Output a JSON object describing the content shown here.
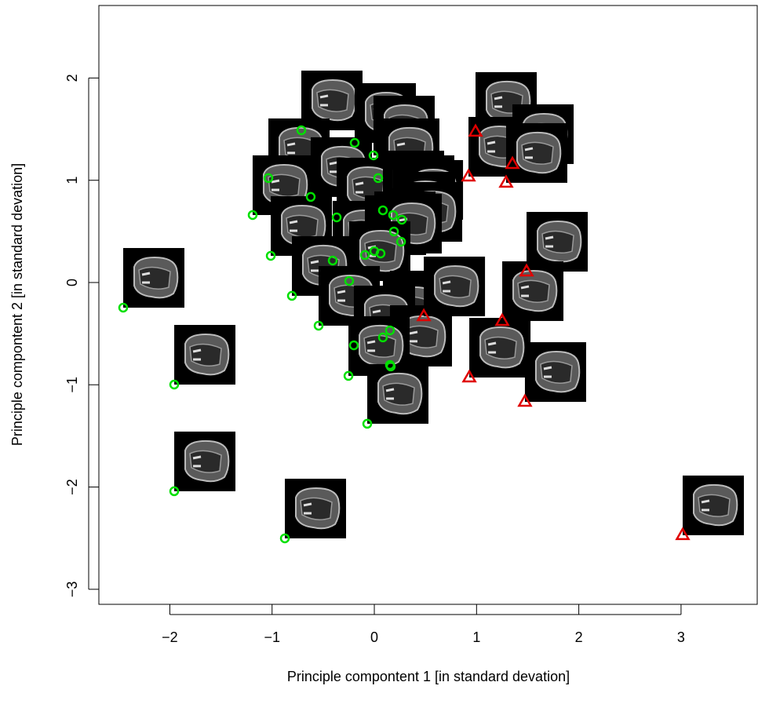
{
  "chart_data": {
    "type": "scatter",
    "x_label": "Principle compontent 1 [in standard devation]",
    "y_label": "Principle compontent 2 [in standard devation]",
    "xlim": [
      -2.694,
      3.745
    ],
    "ylim": [
      -3.147,
      2.709
    ],
    "xticks": [
      {
        "value": -2,
        "label": "−2"
      },
      {
        "value": -1,
        "label": "−1"
      },
      0,
      1,
      2,
      3
    ],
    "yticks": [
      {
        "value": -3,
        "label": "−3"
      },
      {
        "value": -2,
        "label": "−2"
      },
      {
        "value": -1,
        "label": "−1"
      },
      0,
      1,
      2
    ],
    "thumbnails": true,
    "series": [
      {
        "color": "#00e000",
        "marker": "circle",
        "x": [
          -2.456,
          -0.714,
          -0.192,
          -0.008,
          -1.036,
          -0.622,
          0.038,
          -1.19,
          -0.368,
          0.084,
          0.184,
          0.269,
          0.192,
          0.261,
          -1.013,
          -0.407,
          -0.092,
          0,
          0.061,
          -0.246,
          -0.806,
          -0.545,
          0.153,
          0.084,
          -0.2,
          0.153,
          0.161,
          -0.253,
          -1.957,
          -0.069,
          -1.957,
          -0.875
        ],
        "values": [
          -0.246,
          1.489,
          1.366,
          1.243,
          1.021,
          0.837,
          1.021,
          0.66,
          0.637,
          0.706,
          0.66,
          0.614,
          0.499,
          0.399,
          0.261,
          0.215,
          0.269,
          0.307,
          0.284,
          0.015,
          -0.13,
          -0.422,
          -0.468,
          -0.537,
          -0.614,
          -0.806,
          -0.821,
          -0.913,
          -0.998,
          -1.381,
          -2.041,
          -2.502
        ]
      },
      {
        "color": "#e00000",
        "marker": "triangle",
        "x": [
          0.99,
          0.921,
          1.351,
          1.289,
          1.489,
          0.484,
          1.251,
          0.929,
          1.473,
          3.016
        ],
        "values": [
          1.474,
          1.036,
          1.159,
          0.975,
          0.107,
          -0.33,
          -0.376,
          -0.929,
          -1.167,
          -2.471
        ]
      }
    ]
  }
}
